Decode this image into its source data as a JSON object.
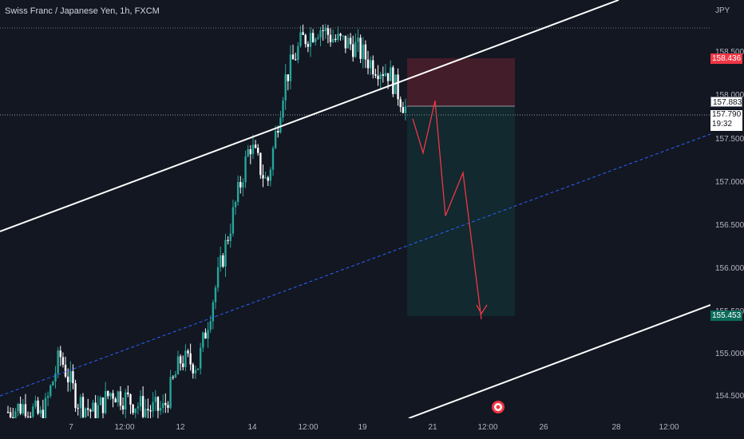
{
  "header": {
    "symbol_title": "Swiss Franc / Japanese Yen, 1h, FXCM",
    "currency": "JPY"
  },
  "price_axis": {
    "ticks": [
      "158.500",
      "158.000",
      "157.500",
      "157.000",
      "156.500",
      "156.000",
      "155.500",
      "155.000",
      "154.500"
    ],
    "tags": {
      "stop_loss": "158.436",
      "entry": "157.883",
      "current_price": "157.790",
      "countdown": "19:32",
      "take_profit": "155.453"
    }
  },
  "time_axis": {
    "ticks": [
      "7",
      "12:00",
      "12",
      "14",
      "12:00",
      "19",
      "21",
      "12:00",
      "26",
      "28",
      "12:00"
    ]
  },
  "colors": {
    "background": "#131722",
    "bull": "#26a69a",
    "bear": "#ffffff",
    "channel": "#ffffff",
    "midline": "#2962ff",
    "stop_zone": "#f23645",
    "target_zone": "#089981",
    "projection": "#f23645"
  },
  "icons": {
    "event_marker": "target-icon"
  },
  "chart_data": {
    "type": "candlestick",
    "symbol": "CHFJPY",
    "timeframe": "1h",
    "y_range": [
      154.35,
      159.0
    ],
    "position": {
      "type": "short",
      "stop": 158.436,
      "entry": 157.883,
      "target": 155.453
    },
    "current_price": 157.79,
    "prior_high_line": 158.76,
    "projection_path": [
      157.68,
      157.3,
      157.88,
      156.6,
      157.08,
      155.45
    ],
    "close_path": [
      154.42,
      154.5,
      154.35,
      155.05,
      154.55,
      154.4,
      154.65,
      154.55,
      154.45,
      154.45,
      155.0,
      154.95,
      155.8,
      156.6,
      157.4,
      156.95,
      158.1,
      158.55,
      158.7,
      158.55,
      158.5,
      158.3,
      158.2,
      157.8
    ]
  }
}
